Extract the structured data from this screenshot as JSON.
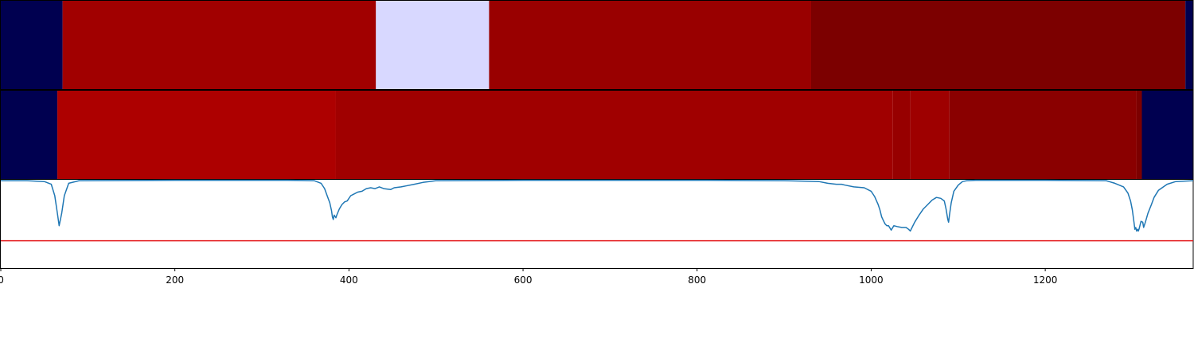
{
  "chart_data": [
    {
      "type": "heatmap",
      "panel": "top-bar",
      "xlim": [
        0,
        1370
      ],
      "segments": [
        {
          "start": 0,
          "end": 71,
          "color": "#000050"
        },
        {
          "start": 71,
          "end": 431,
          "color": "#a10000"
        },
        {
          "start": 431,
          "end": 561,
          "color": "#d8d8ff"
        },
        {
          "start": 561,
          "end": 931,
          "color": "#990000"
        },
        {
          "start": 931,
          "end": 1361,
          "color": "#7c0000"
        },
        {
          "start": 1361,
          "end": 1370,
          "color": "#000050"
        }
      ]
    },
    {
      "type": "heatmap",
      "panel": "middle-bar",
      "xlim": [
        0,
        1370
      ],
      "segments": [
        {
          "start": 0,
          "end": 65,
          "color": "#000050"
        },
        {
          "start": 65,
          "end": 385,
          "color": "#ad0000"
        },
        {
          "start": 385,
          "end": 1025,
          "color": "#a00000"
        },
        {
          "start": 1025,
          "end": 1045,
          "color": "#970000"
        },
        {
          "start": 1045,
          "end": 1090,
          "color": "#9e0000"
        },
        {
          "start": 1090,
          "end": 1305,
          "color": "#8a0000"
        },
        {
          "start": 1305,
          "end": 1311,
          "color": "#7c0000"
        },
        {
          "start": 1311,
          "end": 1370,
          "color": "#000050"
        }
      ]
    },
    {
      "type": "line",
      "panel": "signal",
      "xlim": [
        0,
        1370
      ],
      "ylim": [
        0,
        1
      ],
      "xticks": [
        0,
        200,
        400,
        600,
        800,
        1000,
        1200
      ],
      "threshold": {
        "value": 0.31,
        "color": "#e41a1c"
      },
      "series": [
        {
          "color": "#1f77b4",
          "x": [
            0,
            30,
            50,
            58,
            62,
            65,
            67,
            70,
            73,
            78,
            90,
            200,
            330,
            360,
            368,
            372,
            375,
            378,
            380,
            381,
            382,
            383,
            385,
            386,
            389,
            392,
            395,
            398,
            402,
            406,
            410,
            415,
            420,
            425,
            430,
            435,
            440,
            448,
            452,
            460,
            465,
            475,
            485,
            500,
            600,
            800,
            900,
            940,
            950,
            960,
            966,
            970,
            980,
            992,
            1000,
            1004,
            1008,
            1010,
            1012,
            1014,
            1016,
            1018,
            1020,
            1023,
            1026,
            1030,
            1035,
            1040,
            1043,
            1045,
            1047,
            1050,
            1055,
            1060,
            1065,
            1070,
            1075,
            1080,
            1084,
            1086,
            1088,
            1089,
            1090,
            1092,
            1095,
            1100,
            1105,
            1110,
            1120,
            1200,
            1270,
            1280,
            1290,
            1295,
            1298,
            1300,
            1302,
            1303,
            1304,
            1305,
            1306,
            1307,
            1308,
            1310,
            1312,
            1313,
            1315,
            1318,
            1322,
            1325,
            1330,
            1340,
            1350,
            1370
          ],
          "y": [
            0.99,
            0.99,
            0.98,
            0.95,
            0.82,
            0.62,
            0.48,
            0.62,
            0.82,
            0.96,
            0.99,
            0.995,
            0.995,
            0.99,
            0.96,
            0.9,
            0.82,
            0.74,
            0.65,
            0.58,
            0.55,
            0.6,
            0.57,
            0.6,
            0.67,
            0.72,
            0.75,
            0.76,
            0.82,
            0.84,
            0.86,
            0.87,
            0.9,
            0.91,
            0.9,
            0.92,
            0.9,
            0.89,
            0.91,
            0.92,
            0.93,
            0.95,
            0.97,
            0.99,
            0.995,
            0.995,
            0.99,
            0.98,
            0.96,
            0.95,
            0.95,
            0.94,
            0.92,
            0.91,
            0.87,
            0.81,
            0.72,
            0.66,
            0.58,
            0.54,
            0.5,
            0.48,
            0.48,
            0.43,
            0.48,
            0.47,
            0.46,
            0.46,
            0.44,
            0.42,
            0.46,
            0.52,
            0.6,
            0.67,
            0.72,
            0.77,
            0.8,
            0.79,
            0.76,
            0.67,
            0.55,
            0.52,
            0.6,
            0.74,
            0.87,
            0.94,
            0.98,
            0.99,
            0.995,
            0.995,
            0.99,
            0.96,
            0.92,
            0.85,
            0.76,
            0.66,
            0.52,
            0.44,
            0.46,
            0.42,
            0.44,
            0.42,
            0.45,
            0.53,
            0.52,
            0.46,
            0.52,
            0.62,
            0.72,
            0.8,
            0.88,
            0.95,
            0.98,
            0.99
          ]
        }
      ]
    }
  ]
}
